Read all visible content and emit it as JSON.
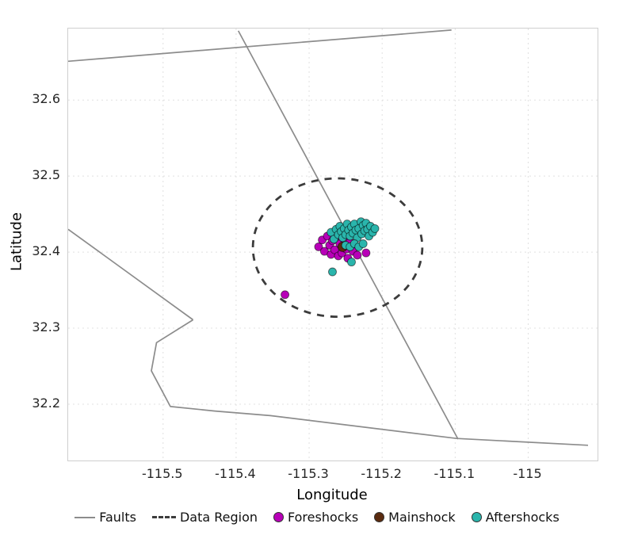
{
  "chart_data": {
    "type": "scatter",
    "title": "",
    "xlabel": "Longitude",
    "ylabel": "Latitude",
    "xlim": [
      -115.63,
      -114.905
    ],
    "ylim": [
      32.126,
      32.694
    ],
    "x_ticks": {
      "values": [
        -115.5,
        -115.4,
        -115.3,
        -115.2,
        -115.1,
        -115.0
      ],
      "labels": [
        "-115.5",
        "-115.4",
        "-115.3",
        "-115.2",
        "-115.1",
        "-115"
      ]
    },
    "y_ticks": {
      "values": [
        32.2,
        32.3,
        32.4,
        32.5,
        32.6
      ],
      "labels": [
        "32.2",
        "32.3",
        "32.4",
        "32.5",
        "32.6"
      ]
    },
    "grid": {
      "show": true,
      "style": "dotted",
      "color": "#e0e0e0"
    },
    "legend_position": "bottom",
    "faults": {
      "label": "Faults",
      "color": "#8c8c8c",
      "width": 1.7,
      "lines": [
        [
          [
            -115.63,
            32.651
          ],
          [
            -115.105,
            32.692
          ]
        ],
        [
          [
            -115.397,
            32.691
          ],
          [
            -115.096,
            32.154
          ]
        ],
        [
          [
            -115.63,
            32.43
          ],
          [
            -115.459,
            32.311
          ]
        ],
        [
          [
            -115.459,
            32.311
          ],
          [
            -115.509,
            32.281
          ],
          [
            -115.516,
            32.244
          ],
          [
            -115.49,
            32.197
          ],
          [
            -115.429,
            32.191
          ],
          [
            -115.353,
            32.185
          ],
          [
            -115.098,
            32.155
          ],
          [
            -114.918,
            32.146
          ]
        ]
      ]
    },
    "data_region": {
      "label": "Data Region",
      "color": "#3c3c3c",
      "center": [
        -115.261,
        32.406
      ],
      "rx": 0.116,
      "ry": 0.091,
      "width": 2.8,
      "dash": "9 8"
    },
    "events": [
      {
        "name": "Foreshocks",
        "color": "#b800b8",
        "marker_size": 5,
        "points": [
          [
            -115.333,
            32.344
          ],
          [
            -115.287,
            32.407
          ],
          [
            -115.282,
            32.416
          ],
          [
            -115.279,
            32.401
          ],
          [
            -115.275,
            32.421
          ],
          [
            -115.272,
            32.409
          ],
          [
            -115.27,
            32.397
          ],
          [
            -115.268,
            32.415
          ],
          [
            -115.265,
            32.403
          ],
          [
            -115.262,
            32.421
          ],
          [
            -115.26,
            32.395
          ],
          [
            -115.258,
            32.411
          ],
          [
            -115.255,
            32.399
          ],
          [
            -115.252,
            32.417
          ],
          [
            -115.249,
            32.404
          ],
          [
            -115.247,
            32.392
          ],
          [
            -115.244,
            32.413
          ],
          [
            -115.24,
            32.401
          ],
          [
            -115.234,
            32.396
          ],
          [
            -115.222,
            32.399
          ]
        ]
      },
      {
        "name": "Mainshock",
        "color": "#5a2b0f",
        "marker_size": 6,
        "points": [
          [
            -115.254,
            32.407
          ]
        ]
      },
      {
        "name": "Aftershocks",
        "color": "#2ab5ac",
        "marker_size": 5,
        "points": [
          [
            -115.27,
            32.426
          ],
          [
            -115.266,
            32.417
          ],
          [
            -115.263,
            32.43
          ],
          [
            -115.26,
            32.423
          ],
          [
            -115.258,
            32.434
          ],
          [
            -115.256,
            32.427
          ],
          [
            -115.254,
            32.419
          ],
          [
            -115.252,
            32.431
          ],
          [
            -115.25,
            32.423
          ],
          [
            -115.248,
            32.437
          ],
          [
            -115.246,
            32.429
          ],
          [
            -115.244,
            32.421
          ],
          [
            -115.242,
            32.433
          ],
          [
            -115.24,
            32.425
          ],
          [
            -115.238,
            32.437
          ],
          [
            -115.236,
            32.429
          ],
          [
            -115.234,
            32.419
          ],
          [
            -115.232,
            32.431
          ],
          [
            -115.229,
            32.44
          ],
          [
            -115.228,
            32.424
          ],
          [
            -115.226,
            32.435
          ],
          [
            -115.224,
            32.428
          ],
          [
            -115.222,
            32.438
          ],
          [
            -115.22,
            32.43
          ],
          [
            -115.218,
            32.421
          ],
          [
            -115.216,
            32.434
          ],
          [
            -115.213,
            32.426
          ],
          [
            -115.25,
            32.409
          ],
          [
            -115.244,
            32.407
          ],
          [
            -115.238,
            32.411
          ],
          [
            -115.232,
            32.407
          ],
          [
            -115.268,
            32.374
          ],
          [
            -115.242,
            32.387
          ],
          [
            -115.226,
            32.411
          ],
          [
            -115.21,
            32.431
          ]
        ]
      }
    ],
    "legend": [
      {
        "label": "Faults",
        "swatch": "line",
        "color": "#8c8c8c"
      },
      {
        "label": "Data Region",
        "swatch": "dashed",
        "color": "#3c3c3c"
      },
      {
        "label": "Foreshocks",
        "swatch": "dot",
        "color": "#b800b8"
      },
      {
        "label": "Mainshock",
        "swatch": "dot",
        "color": "#5a2b0f"
      },
      {
        "label": "Aftershocks",
        "swatch": "dot",
        "color": "#2ab5ac"
      }
    ]
  }
}
